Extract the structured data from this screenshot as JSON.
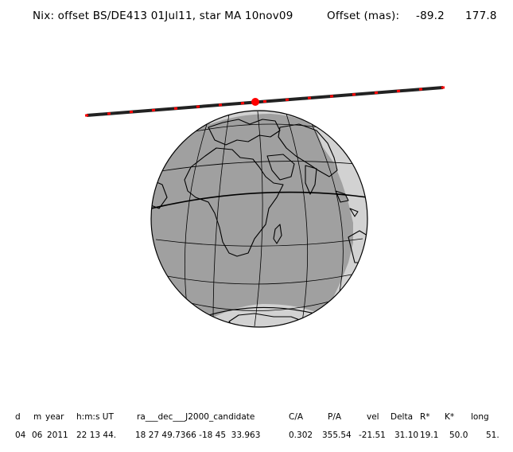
{
  "title": {
    "main": "Nix: offset BS/DE413 01Jul11, star MA 10nov09",
    "offset_label": "Offset (mas):",
    "offset_x": "-89.2",
    "offset_y": "177.8"
  },
  "map": {
    "projection": "orthographic globe",
    "ocean_color": "#a0a0a0",
    "night_color": "#a0a0a0",
    "day_color": "#d2d2d2",
    "coast_color": "#000000",
    "track_color": "#222222",
    "track_mark_color": "#ff0000",
    "event_marker_color": "#ff0000"
  },
  "table": {
    "headers": [
      "d",
      "m",
      "year",
      "h:m:s UT",
      "ra___dec___J2000_candidate",
      "C/A",
      "P/A",
      "vel",
      "Delta",
      "R*",
      "K*",
      "long"
    ],
    "values": [
      "04",
      "06",
      "2011",
      "22 13 44.",
      "18 27 49.7366 -18 45  33.963",
      "0.302",
      "355.54",
      "-21.51",
      "31.10",
      "19.1",
      "50.0",
      "51."
    ]
  }
}
